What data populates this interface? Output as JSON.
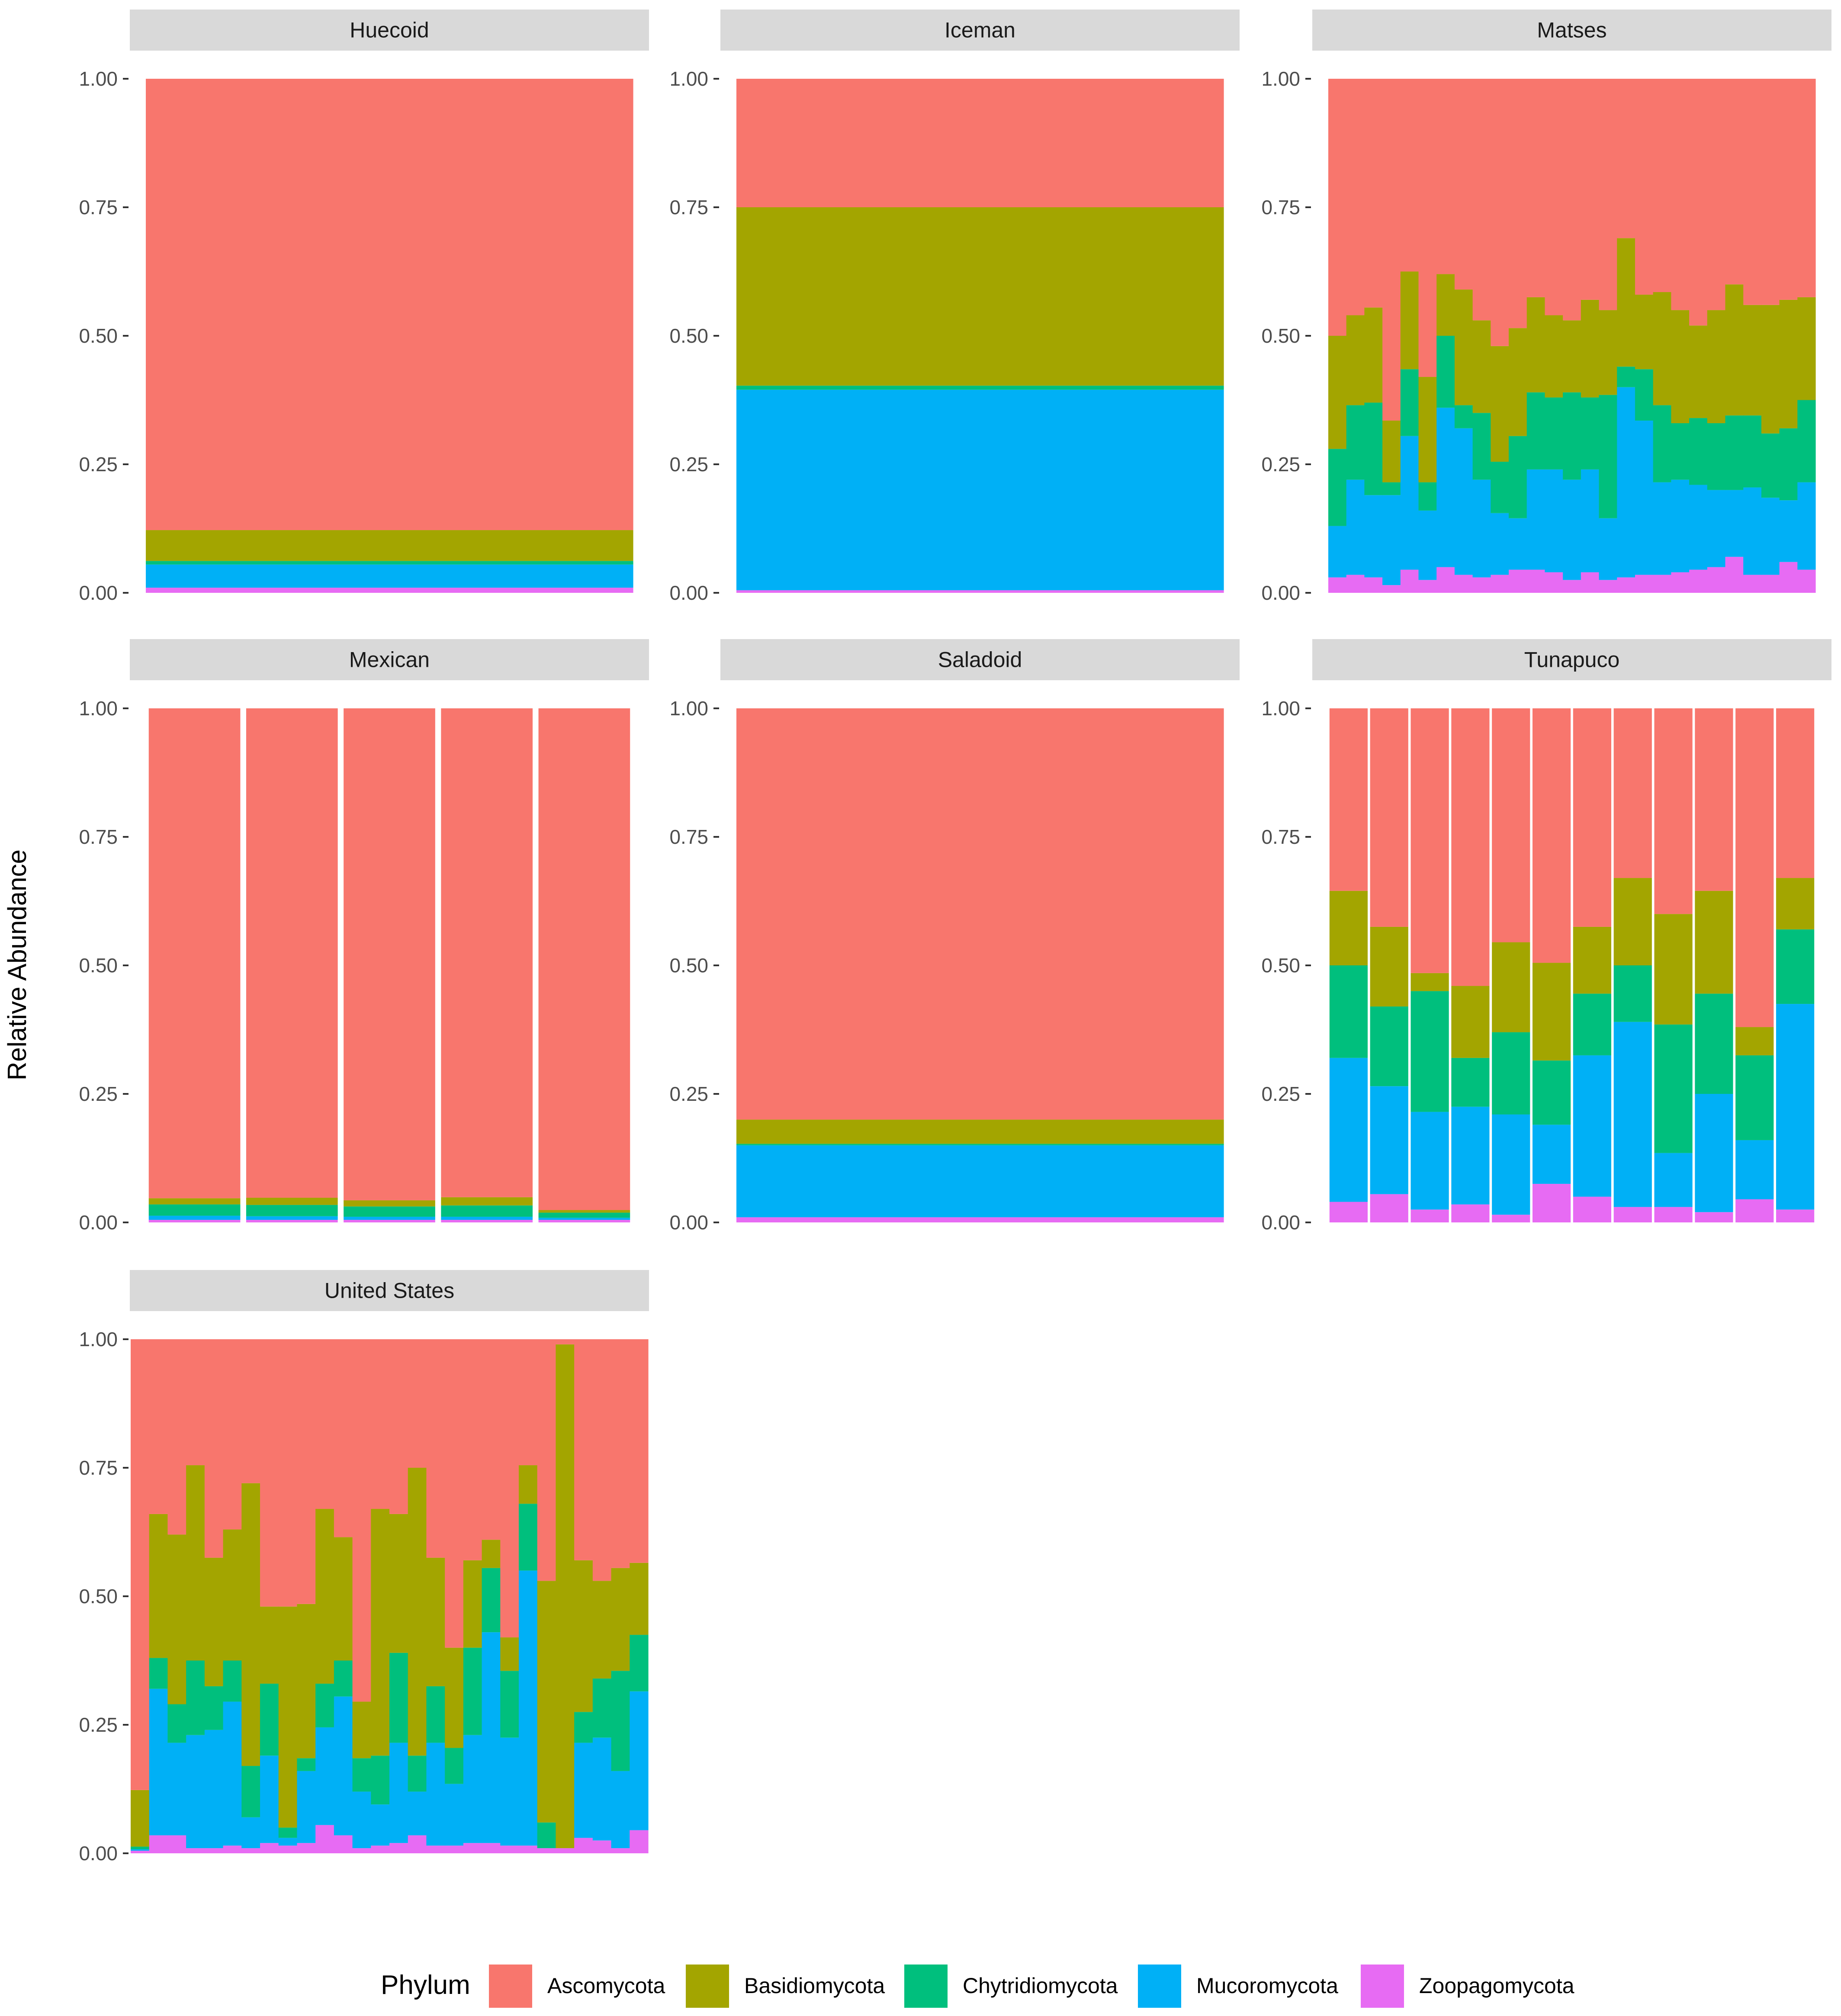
{
  "chart_data": {
    "type": "bar",
    "stacked": true,
    "ylabel": "Relative Abundance",
    "ylim": [
      0,
      1
    ],
    "yticks": [
      "0.00",
      "0.25",
      "0.50",
      "0.75",
      "1.00"
    ],
    "legend": {
      "title": "Phylum",
      "position": "bottom",
      "entries": [
        {
          "name": "Ascomycota",
          "color": "#F8766D"
        },
        {
          "name": "Basidiomycota",
          "color": "#A3A500"
        },
        {
          "name": "Chytridiomycota",
          "color": "#00BF7D"
        },
        {
          "name": "Mucoromycota",
          "color": "#00B0F6"
        },
        {
          "name": "Zoopagomycota",
          "color": "#E76BF3"
        }
      ]
    },
    "stack_order_bottom_to_top": [
      "Zoopagomycota",
      "Mucoromycota",
      "Chytridiomycota",
      "Basidiomycota",
      "Ascomycota"
    ],
    "panels": [
      {
        "title": "Huecoid",
        "bar_gap": false,
        "samples": [
          {
            "Z": 0.01,
            "M": 0.045,
            "C": 0.007,
            "B": 0.06
          }
        ]
      },
      {
        "title": "Iceman",
        "bar_gap": false,
        "samples": [
          {
            "Z": 0.005,
            "M": 0.39,
            "C": 0.008,
            "B": 0.347
          }
        ]
      },
      {
        "title": "Matses",
        "bar_gap": false,
        "samples": [
          {
            "Z": 0.03,
            "M": 0.1,
            "C": 0.15,
            "B": 0.22
          },
          {
            "Z": 0.035,
            "M": 0.185,
            "C": 0.145,
            "B": 0.175
          },
          {
            "Z": 0.03,
            "M": 0.16,
            "C": 0.18,
            "B": 0.185
          },
          {
            "Z": 0.015,
            "M": 0.175,
            "C": 0.025,
            "B": 0.12
          },
          {
            "Z": 0.045,
            "M": 0.26,
            "C": 0.13,
            "B": 0.19
          },
          {
            "Z": 0.025,
            "M": 0.135,
            "C": 0.055,
            "B": 0.205
          },
          {
            "Z": 0.05,
            "M": 0.31,
            "C": 0.14,
            "B": 0.12
          },
          {
            "Z": 0.035,
            "M": 0.285,
            "C": 0.045,
            "B": 0.225
          },
          {
            "Z": 0.03,
            "M": 0.19,
            "C": 0.13,
            "B": 0.18
          },
          {
            "Z": 0.035,
            "M": 0.12,
            "C": 0.1,
            "B": 0.225
          },
          {
            "Z": 0.045,
            "M": 0.1,
            "C": 0.16,
            "B": 0.21
          },
          {
            "Z": 0.045,
            "M": 0.195,
            "C": 0.15,
            "B": 0.185
          },
          {
            "Z": 0.04,
            "M": 0.2,
            "C": 0.14,
            "B": 0.16
          },
          {
            "Z": 0.025,
            "M": 0.195,
            "C": 0.17,
            "B": 0.14
          },
          {
            "Z": 0.04,
            "M": 0.2,
            "C": 0.14,
            "B": 0.19
          },
          {
            "Z": 0.025,
            "M": 0.12,
            "C": 0.24,
            "B": 0.165
          },
          {
            "Z": 0.03,
            "M": 0.37,
            "C": 0.04,
            "B": 0.25
          },
          {
            "Z": 0.035,
            "M": 0.3,
            "C": 0.1,
            "B": 0.145
          },
          {
            "Z": 0.035,
            "M": 0.18,
            "C": 0.15,
            "B": 0.22
          },
          {
            "Z": 0.04,
            "M": 0.18,
            "C": 0.11,
            "B": 0.22
          },
          {
            "Z": 0.045,
            "M": 0.165,
            "C": 0.13,
            "B": 0.18
          },
          {
            "Z": 0.05,
            "M": 0.15,
            "C": 0.13,
            "B": 0.22
          },
          {
            "Z": 0.07,
            "M": 0.13,
            "C": 0.145,
            "B": 0.255
          },
          {
            "Z": 0.035,
            "M": 0.17,
            "C": 0.14,
            "B": 0.215
          },
          {
            "Z": 0.035,
            "M": 0.15,
            "C": 0.125,
            "B": 0.25
          },
          {
            "Z": 0.06,
            "M": 0.12,
            "C": 0.14,
            "B": 0.25
          },
          {
            "Z": 0.045,
            "M": 0.17,
            "C": 0.16,
            "B": 0.2
          }
        ]
      },
      {
        "title": "Mexican",
        "bar_gap": true,
        "samples": [
          {
            "Z": 0.005,
            "M": 0.008,
            "C": 0.022,
            "B": 0.012
          },
          {
            "Z": 0.005,
            "M": 0.007,
            "C": 0.022,
            "B": 0.014
          },
          {
            "Z": 0.005,
            "M": 0.006,
            "C": 0.02,
            "B": 0.012
          },
          {
            "Z": 0.005,
            "M": 0.006,
            "C": 0.022,
            "B": 0.016
          },
          {
            "Z": 0.005,
            "M": 0.004,
            "C": 0.01,
            "B": 0.005
          }
        ]
      },
      {
        "title": "Saladoid",
        "bar_gap": false,
        "samples": [
          {
            "Z": 0.01,
            "M": 0.14,
            "C": 0.003,
            "B": 0.047
          }
        ]
      },
      {
        "title": "Tunapuco",
        "bar_gap": true,
        "samples": [
          {
            "Z": 0.04,
            "M": 0.28,
            "C": 0.18,
            "B": 0.145
          },
          {
            "Z": 0.055,
            "M": 0.21,
            "C": 0.155,
            "B": 0.155
          },
          {
            "Z": 0.025,
            "M": 0.19,
            "C": 0.235,
            "B": 0.035
          },
          {
            "Z": 0.035,
            "M": 0.19,
            "C": 0.095,
            "B": 0.14
          },
          {
            "Z": 0.015,
            "M": 0.195,
            "C": 0.16,
            "B": 0.175
          },
          {
            "Z": 0.075,
            "M": 0.115,
            "C": 0.125,
            "B": 0.19
          },
          {
            "Z": 0.05,
            "M": 0.275,
            "C": 0.12,
            "B": 0.13
          },
          {
            "Z": 0.03,
            "M": 0.36,
            "C": 0.11,
            "B": 0.17
          },
          {
            "Z": 0.03,
            "M": 0.105,
            "C": 0.25,
            "B": 0.215
          },
          {
            "Z": 0.02,
            "M": 0.23,
            "C": 0.195,
            "B": 0.2
          },
          {
            "Z": 0.045,
            "M": 0.115,
            "C": 0.165,
            "B": 0.055
          },
          {
            "Z": 0.025,
            "M": 0.4,
            "C": 0.145,
            "B": 0.1
          }
        ]
      },
      {
        "title": "United States",
        "bar_gap": false,
        "samples": [
          {
            "Z": 0.005,
            "M": 0.003,
            "C": 0.005,
            "B": 0.11
          },
          {
            "Z": 0.035,
            "M": 0.285,
            "C": 0.06,
            "B": 0.28
          },
          {
            "Z": 0.035,
            "M": 0.18,
            "C": 0.075,
            "B": 0.33
          },
          {
            "Z": 0.01,
            "M": 0.22,
            "C": 0.145,
            "B": 0.38
          },
          {
            "Z": 0.01,
            "M": 0.23,
            "C": 0.085,
            "B": 0.25
          },
          {
            "Z": 0.015,
            "M": 0.28,
            "C": 0.08,
            "B": 0.255
          },
          {
            "Z": 0.01,
            "M": 0.06,
            "C": 0.1,
            "B": 0.55
          },
          {
            "Z": 0.02,
            "M": 0.17,
            "C": 0.14,
            "B": 0.15
          },
          {
            "Z": 0.015,
            "M": 0.015,
            "C": 0.02,
            "B": 0.43
          },
          {
            "Z": 0.02,
            "M": 0.14,
            "C": 0.025,
            "B": 0.3
          },
          {
            "Z": 0.055,
            "M": 0.19,
            "C": 0.085,
            "B": 0.34
          },
          {
            "Z": 0.035,
            "M": 0.27,
            "C": 0.07,
            "B": 0.24
          },
          {
            "Z": 0.01,
            "M": 0.11,
            "C": 0.065,
            "B": 0.11
          },
          {
            "Z": 0.015,
            "M": 0.08,
            "C": 0.095,
            "B": 0.48
          },
          {
            "Z": 0.02,
            "M": 0.195,
            "C": 0.175,
            "B": 0.27
          },
          {
            "Z": 0.035,
            "M": 0.085,
            "C": 0.07,
            "B": 0.56
          },
          {
            "Z": 0.015,
            "M": 0.2,
            "C": 0.11,
            "B": 0.25
          },
          {
            "Z": 0.015,
            "M": 0.12,
            "C": 0.07,
            "B": 0.195
          },
          {
            "Z": 0.02,
            "M": 0.21,
            "C": 0.17,
            "B": 0.17
          },
          {
            "Z": 0.02,
            "M": 0.41,
            "C": 0.125,
            "B": 0.055
          },
          {
            "Z": 0.015,
            "M": 0.21,
            "C": 0.13,
            "B": 0.065
          },
          {
            "Z": 0.015,
            "M": 0.535,
            "C": 0.13,
            "B": 0.075
          },
          {
            "Z": 0.01,
            "M": 0.0,
            "C": 0.05,
            "B": 0.47
          },
          {
            "Z": 0.01,
            "M": 0.0,
            "C": 0.0,
            "B": 0.98
          },
          {
            "Z": 0.03,
            "M": 0.185,
            "C": 0.06,
            "B": 0.295
          },
          {
            "Z": 0.025,
            "M": 0.2,
            "C": 0.115,
            "B": 0.19
          },
          {
            "Z": 0.01,
            "M": 0.15,
            "C": 0.195,
            "B": 0.2
          },
          {
            "Z": 0.045,
            "M": 0.27,
            "C": 0.11,
            "B": 0.14
          }
        ]
      }
    ]
  }
}
